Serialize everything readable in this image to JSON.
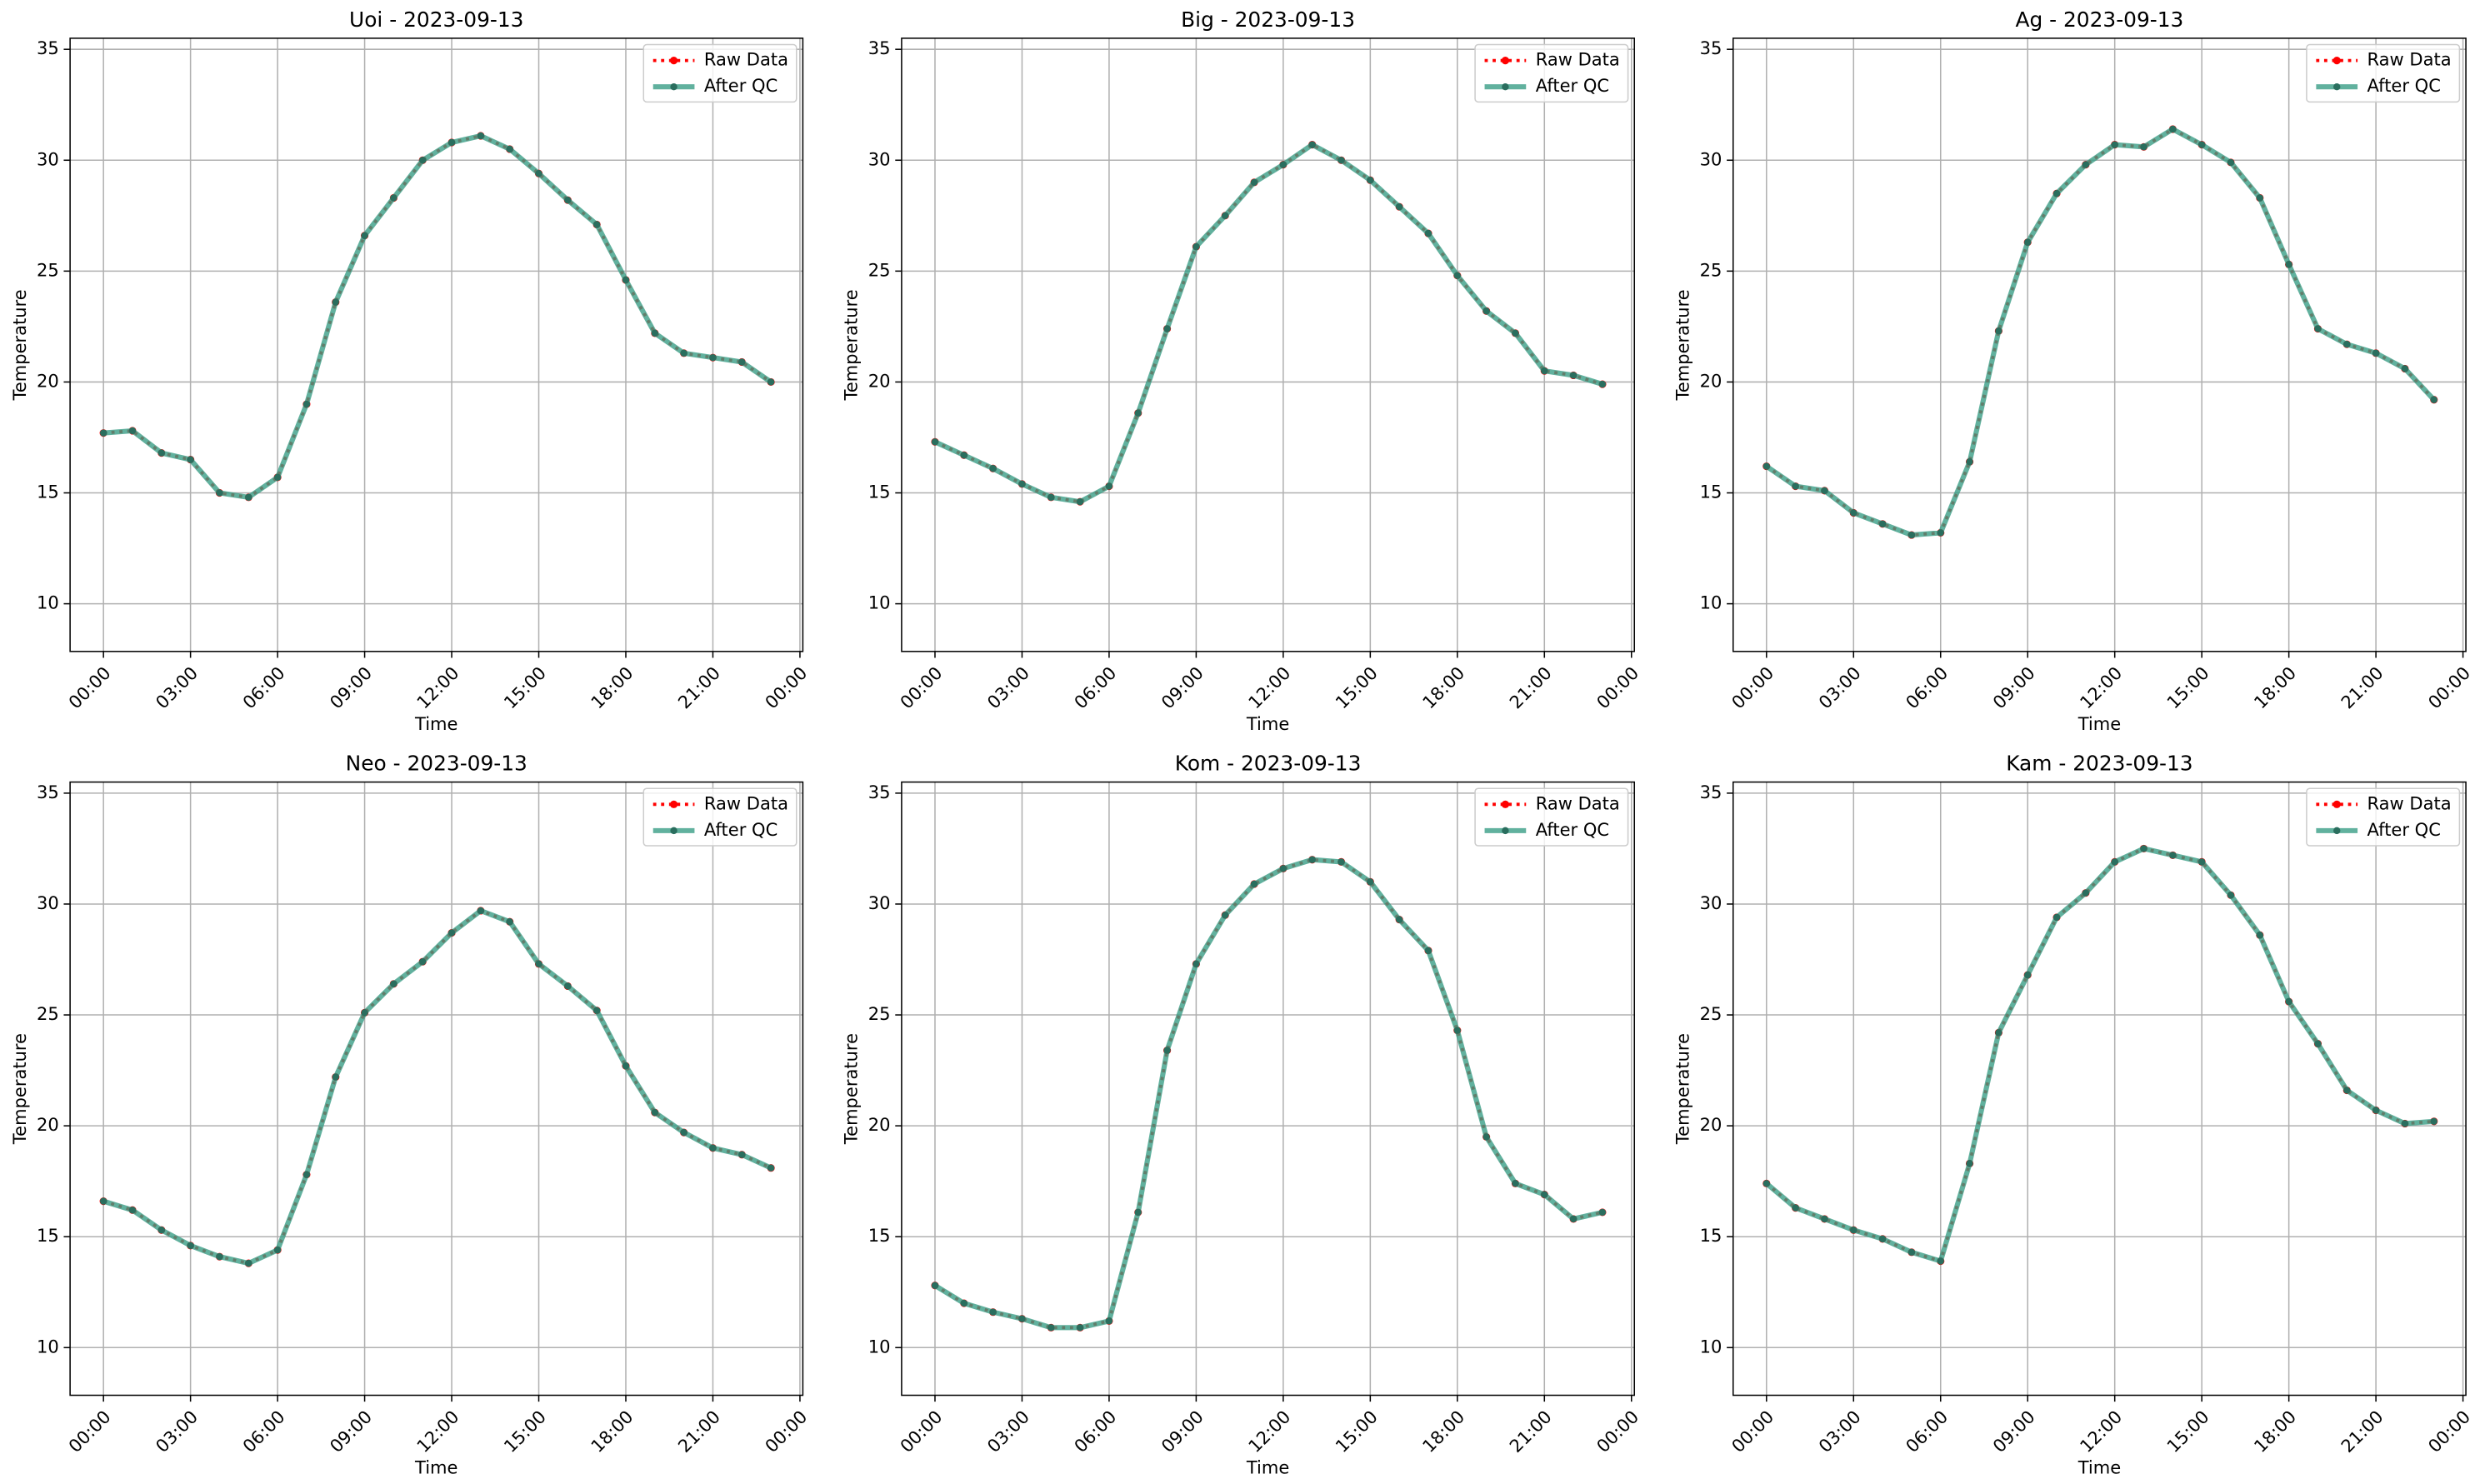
{
  "chart_data": [
    {
      "type": "line",
      "title": "Uoi - 2023-09-13",
      "xlabel": "Time",
      "ylabel": "Temperature",
      "x": [
        0,
        1,
        2,
        3,
        4,
        5,
        6,
        7,
        8,
        9,
        10,
        11,
        12,
        13,
        14,
        15,
        16,
        17,
        18,
        19,
        20,
        21,
        22,
        23
      ],
      "series": [
        {
          "name": "Raw Data",
          "color": "#ff0000",
          "values": [
            17.7,
            17.8,
            16.8,
            16.5,
            15.0,
            14.8,
            15.7,
            19.0,
            23.6,
            26.6,
            28.3,
            30.0,
            30.8,
            31.1,
            30.5,
            29.4,
            28.2,
            27.1,
            24.6,
            22.2,
            21.3,
            21.1,
            20.9,
            20.0
          ]
        },
        {
          "name": "After QC",
          "color": "#3a9e86",
          "values": [
            17.7,
            17.8,
            16.8,
            16.5,
            15.0,
            14.8,
            15.7,
            19.0,
            23.6,
            26.6,
            28.3,
            30.0,
            30.8,
            31.1,
            30.5,
            29.4,
            28.2,
            27.1,
            24.6,
            22.2,
            21.3,
            21.1,
            20.9,
            20.0
          ]
        }
      ],
      "xlim": [
        -1.15,
        24.1
      ],
      "ylim": [
        7.85,
        35.5
      ],
      "xticks": [
        {
          "value": 0,
          "label": "00:00"
        },
        {
          "value": 3,
          "label": "03:00"
        },
        {
          "value": 6,
          "label": "06:00"
        },
        {
          "value": 9,
          "label": "09:00"
        },
        {
          "value": 12,
          "label": "12:00"
        },
        {
          "value": 15,
          "label": "15:00"
        },
        {
          "value": 18,
          "label": "18:00"
        },
        {
          "value": 21,
          "label": "21:00"
        },
        {
          "value": 24,
          "label": "00:00"
        }
      ],
      "yticks": [
        10,
        15,
        20,
        25,
        30,
        35
      ],
      "grid": true,
      "legend": "upper right"
    },
    {
      "type": "line",
      "title": "Big - 2023-09-13",
      "xlabel": "Time",
      "ylabel": "Temperature",
      "x": [
        0,
        1,
        2,
        3,
        4,
        5,
        6,
        7,
        8,
        9,
        10,
        11,
        12,
        13,
        14,
        15,
        16,
        17,
        18,
        19,
        20,
        21,
        22,
        23
      ],
      "series": [
        {
          "name": "Raw Data",
          "color": "#ff0000",
          "values": [
            17.3,
            16.7,
            16.1,
            15.4,
            14.8,
            14.6,
            15.3,
            18.6,
            22.4,
            26.1,
            27.5,
            29.0,
            29.8,
            30.7,
            30.0,
            29.1,
            27.9,
            26.7,
            24.8,
            23.2,
            22.2,
            20.5,
            20.3,
            19.9
          ]
        },
        {
          "name": "After QC",
          "color": "#3a9e86",
          "values": [
            17.3,
            16.7,
            16.1,
            15.4,
            14.8,
            14.6,
            15.3,
            18.6,
            22.4,
            26.1,
            27.5,
            29.0,
            29.8,
            30.7,
            30.0,
            29.1,
            27.9,
            26.7,
            24.8,
            23.2,
            22.2,
            20.5,
            20.3,
            19.9
          ]
        }
      ],
      "xlim": [
        -1.15,
        24.1
      ],
      "ylim": [
        7.85,
        35.5
      ],
      "xticks": [
        {
          "value": 0,
          "label": "00:00"
        },
        {
          "value": 3,
          "label": "03:00"
        },
        {
          "value": 6,
          "label": "06:00"
        },
        {
          "value": 9,
          "label": "09:00"
        },
        {
          "value": 12,
          "label": "12:00"
        },
        {
          "value": 15,
          "label": "15:00"
        },
        {
          "value": 18,
          "label": "18:00"
        },
        {
          "value": 21,
          "label": "21:00"
        },
        {
          "value": 24,
          "label": "00:00"
        }
      ],
      "yticks": [
        10,
        15,
        20,
        25,
        30,
        35
      ],
      "grid": true,
      "legend": "upper right"
    },
    {
      "type": "line",
      "title": "Ag - 2023-09-13",
      "xlabel": "Time",
      "ylabel": "Temperature",
      "x": [
        0,
        1,
        2,
        3,
        4,
        5,
        6,
        7,
        8,
        9,
        10,
        11,
        12,
        13,
        14,
        15,
        16,
        17,
        18,
        19,
        20,
        21,
        22,
        23
      ],
      "series": [
        {
          "name": "Raw Data",
          "color": "#ff0000",
          "values": [
            16.2,
            15.3,
            15.1,
            14.1,
            13.6,
            13.1,
            13.2,
            16.4,
            22.3,
            26.3,
            28.5,
            29.8,
            30.7,
            30.6,
            31.4,
            30.7,
            29.9,
            28.3,
            25.3,
            22.4,
            21.7,
            21.3,
            20.6,
            19.2
          ]
        },
        {
          "name": "After QC",
          "color": "#3a9e86",
          "values": [
            16.2,
            15.3,
            15.1,
            14.1,
            13.6,
            13.1,
            13.2,
            16.4,
            22.3,
            26.3,
            28.5,
            29.8,
            30.7,
            30.6,
            31.4,
            30.7,
            29.9,
            28.3,
            25.3,
            22.4,
            21.7,
            21.3,
            20.6,
            19.2
          ]
        }
      ],
      "xlim": [
        -1.15,
        24.1
      ],
      "ylim": [
        7.85,
        35.5
      ],
      "xticks": [
        {
          "value": 0,
          "label": "00:00"
        },
        {
          "value": 3,
          "label": "03:00"
        },
        {
          "value": 6,
          "label": "06:00"
        },
        {
          "value": 9,
          "label": "09:00"
        },
        {
          "value": 12,
          "label": "12:00"
        },
        {
          "value": 15,
          "label": "15:00"
        },
        {
          "value": 18,
          "label": "18:00"
        },
        {
          "value": 21,
          "label": "21:00"
        },
        {
          "value": 24,
          "label": "00:00"
        }
      ],
      "yticks": [
        10,
        15,
        20,
        25,
        30,
        35
      ],
      "grid": true,
      "legend": "upper right"
    },
    {
      "type": "line",
      "title": "Neo - 2023-09-13",
      "xlabel": "Time",
      "ylabel": "Temperature",
      "x": [
        0,
        1,
        2,
        3,
        4,
        5,
        6,
        7,
        8,
        9,
        10,
        11,
        12,
        13,
        14,
        15,
        16,
        17,
        18,
        19,
        20,
        21,
        22,
        23
      ],
      "series": [
        {
          "name": "Raw Data",
          "color": "#ff0000",
          "values": [
            16.6,
            16.2,
            15.3,
            14.6,
            14.1,
            13.8,
            14.4,
            17.8,
            22.2,
            25.1,
            26.4,
            27.4,
            28.7,
            29.7,
            29.2,
            27.3,
            26.3,
            25.2,
            22.7,
            20.6,
            19.7,
            19.0,
            18.7,
            18.1
          ]
        },
        {
          "name": "After QC",
          "color": "#3a9e86",
          "values": [
            16.6,
            16.2,
            15.3,
            14.6,
            14.1,
            13.8,
            14.4,
            17.8,
            22.2,
            25.1,
            26.4,
            27.4,
            28.7,
            29.7,
            29.2,
            27.3,
            26.3,
            25.2,
            22.7,
            20.6,
            19.7,
            19.0,
            18.7,
            18.1
          ]
        }
      ],
      "xlim": [
        -1.15,
        24.1
      ],
      "ylim": [
        7.85,
        35.5
      ],
      "xticks": [
        {
          "value": 0,
          "label": "00:00"
        },
        {
          "value": 3,
          "label": "03:00"
        },
        {
          "value": 6,
          "label": "06:00"
        },
        {
          "value": 9,
          "label": "09:00"
        },
        {
          "value": 12,
          "label": "12:00"
        },
        {
          "value": 15,
          "label": "15:00"
        },
        {
          "value": 18,
          "label": "18:00"
        },
        {
          "value": 21,
          "label": "21:00"
        },
        {
          "value": 24,
          "label": "00:00"
        }
      ],
      "yticks": [
        10,
        15,
        20,
        25,
        30,
        35
      ],
      "grid": true,
      "legend": "upper right"
    },
    {
      "type": "line",
      "title": "Kom - 2023-09-13",
      "xlabel": "Time",
      "ylabel": "Temperature",
      "x": [
        0,
        1,
        2,
        3,
        4,
        5,
        6,
        7,
        8,
        9,
        10,
        11,
        12,
        13,
        14,
        15,
        16,
        17,
        18,
        19,
        20,
        21,
        22,
        23
      ],
      "series": [
        {
          "name": "Raw Data",
          "color": "#ff0000",
          "values": [
            12.8,
            12.0,
            11.6,
            11.3,
            10.9,
            10.9,
            11.2,
            16.1,
            23.4,
            27.3,
            29.5,
            30.9,
            31.6,
            32.0,
            31.9,
            31.0,
            29.3,
            27.9,
            24.3,
            19.5,
            17.4,
            16.9,
            15.8,
            16.1
          ]
        },
        {
          "name": "After QC",
          "color": "#3a9e86",
          "values": [
            12.8,
            12.0,
            11.6,
            11.3,
            10.9,
            10.9,
            11.2,
            16.1,
            23.4,
            27.3,
            29.5,
            30.9,
            31.6,
            32.0,
            31.9,
            31.0,
            29.3,
            27.9,
            24.3,
            19.5,
            17.4,
            16.9,
            15.8,
            16.1
          ]
        }
      ],
      "xlim": [
        -1.15,
        24.1
      ],
      "ylim": [
        7.85,
        35.5
      ],
      "xticks": [
        {
          "value": 0,
          "label": "00:00"
        },
        {
          "value": 3,
          "label": "03:00"
        },
        {
          "value": 6,
          "label": "06:00"
        },
        {
          "value": 9,
          "label": "09:00"
        },
        {
          "value": 12,
          "label": "12:00"
        },
        {
          "value": 15,
          "label": "15:00"
        },
        {
          "value": 18,
          "label": "18:00"
        },
        {
          "value": 21,
          "label": "21:00"
        },
        {
          "value": 24,
          "label": "00:00"
        }
      ],
      "yticks": [
        10,
        15,
        20,
        25,
        30,
        35
      ],
      "grid": true,
      "legend": "upper right"
    },
    {
      "type": "line",
      "title": "Kam - 2023-09-13",
      "xlabel": "Time",
      "ylabel": "Temperature",
      "x": [
        0,
        1,
        2,
        3,
        4,
        5,
        6,
        7,
        8,
        9,
        10,
        11,
        12,
        13,
        14,
        15,
        16,
        17,
        18,
        19,
        20,
        21,
        22,
        23
      ],
      "series": [
        {
          "name": "Raw Data",
          "color": "#ff0000",
          "values": [
            17.4,
            16.3,
            15.8,
            15.3,
            14.9,
            14.3,
            13.9,
            18.3,
            24.2,
            26.8,
            29.4,
            30.5,
            31.9,
            32.5,
            32.2,
            31.9,
            30.4,
            28.6,
            25.6,
            23.7,
            21.6,
            20.7,
            20.1,
            20.2
          ]
        },
        {
          "name": "After QC",
          "color": "#3a9e86",
          "values": [
            17.4,
            16.3,
            15.8,
            15.3,
            14.9,
            14.3,
            13.9,
            18.3,
            24.2,
            26.8,
            29.4,
            30.5,
            31.9,
            32.5,
            32.2,
            31.9,
            30.4,
            28.6,
            25.6,
            23.7,
            21.6,
            20.7,
            20.1,
            20.2
          ]
        }
      ],
      "xlim": [
        -1.15,
        24.1
      ],
      "ylim": [
        7.85,
        35.5
      ],
      "xticks": [
        {
          "value": 0,
          "label": "00:00"
        },
        {
          "value": 3,
          "label": "03:00"
        },
        {
          "value": 6,
          "label": "06:00"
        },
        {
          "value": 9,
          "label": "09:00"
        },
        {
          "value": 12,
          "label": "12:00"
        },
        {
          "value": 15,
          "label": "15:00"
        },
        {
          "value": 18,
          "label": "18:00"
        },
        {
          "value": 21,
          "label": "21:00"
        },
        {
          "value": 24,
          "label": "00:00"
        }
      ],
      "yticks": [
        10,
        15,
        20,
        25,
        30,
        35
      ],
      "grid": true,
      "legend": "upper right"
    }
  ]
}
